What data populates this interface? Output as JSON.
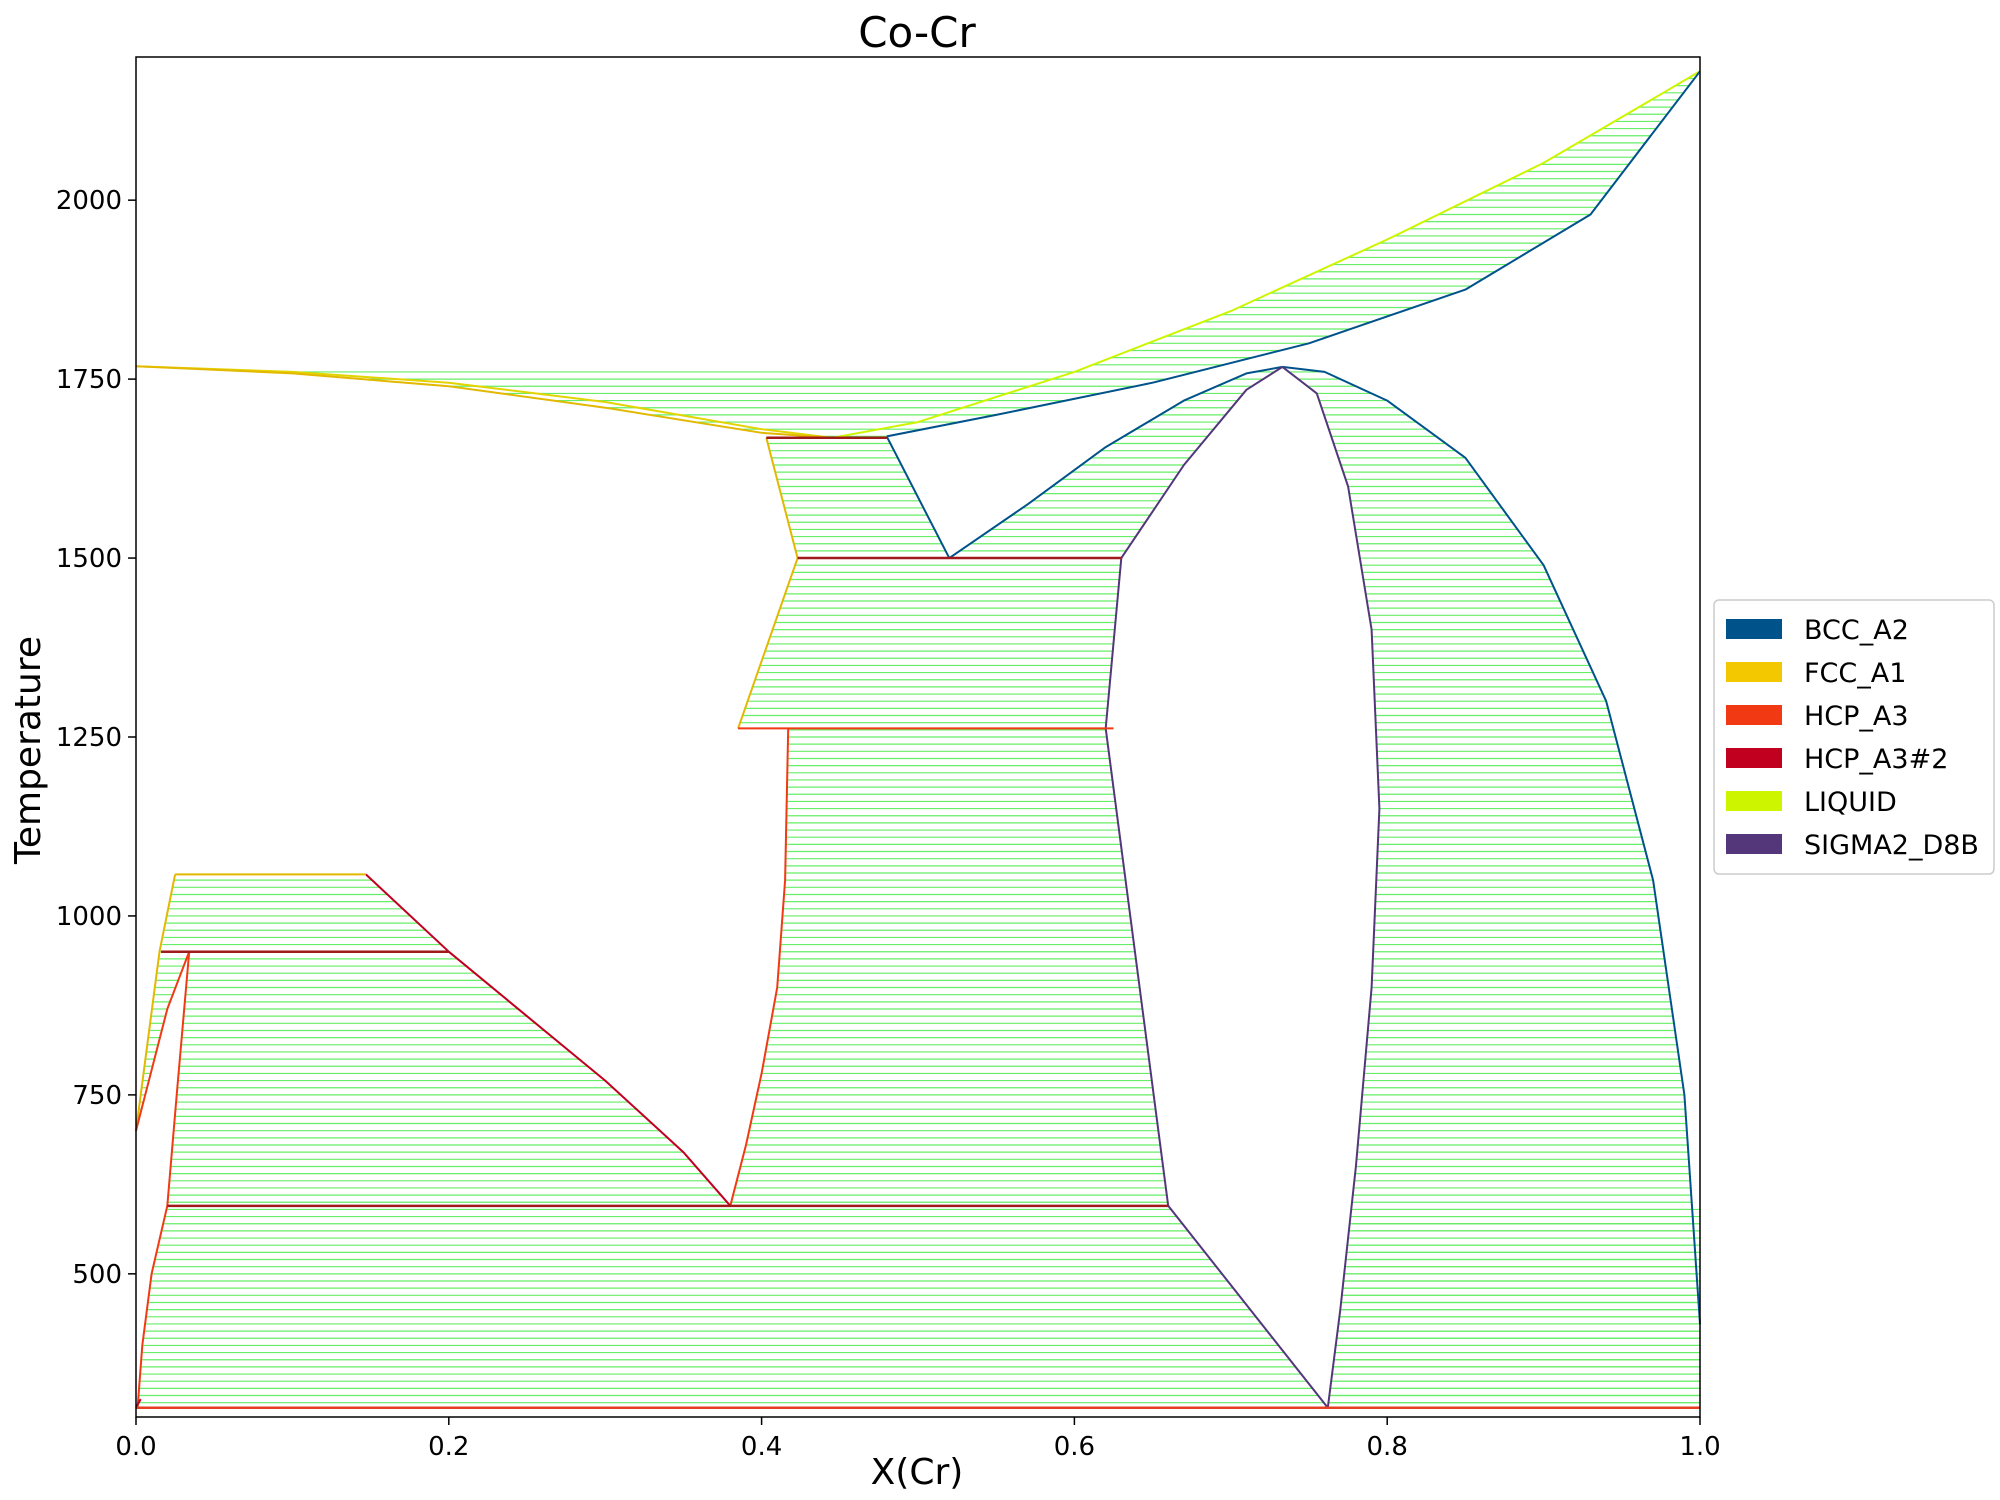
{
  "chart_data": {
    "type": "line",
    "title": "Co-Cr",
    "xlabel": "X(Cr)",
    "ylabel": "Temperature",
    "xlim": [
      0.0,
      1.0
    ],
    "ylim": [
      300,
      2200
    ],
    "x_ticks": [
      "0.0",
      "0.2",
      "0.4",
      "0.6",
      "0.8",
      "1.0"
    ],
    "x_tick_values": [
      0.0,
      0.2,
      0.4,
      0.6,
      0.8,
      1.0
    ],
    "y_ticks": [
      "500",
      "750",
      "1000",
      "1250",
      "1500",
      "1750",
      "2000"
    ],
    "y_tick_values": [
      500,
      750,
      1000,
      1250,
      1500,
      1750,
      2000
    ],
    "grid": false,
    "legend_position": "right-outside",
    "tieline_color": "#66ee66",
    "legend": [
      {
        "name": "BCC_A2",
        "color": "#00538a"
      },
      {
        "name": "FCC_A1",
        "color": "#f4c800"
      },
      {
        "name": "HCP_A3",
        "color": "#f13a13"
      },
      {
        "name": "HCP_A3#2",
        "color": "#c10020"
      },
      {
        "name": "LIQUID",
        "color": "#cef500"
      },
      {
        "name": "SIGMA2_D8B",
        "color": "#53377a"
      }
    ],
    "series": [
      {
        "phase": "LIQUID",
        "color": "#e3d400",
        "x": [
          0.0,
          0.1,
          0.2,
          0.3,
          0.4,
          0.445
        ],
        "y": [
          1768,
          1760,
          1745,
          1718,
          1680,
          1668
        ]
      },
      {
        "phase": "FCC_A1",
        "color": "#e3b800",
        "x": [
          0.0,
          0.1,
          0.2,
          0.3,
          0.4,
          0.445
        ],
        "y": [
          1768,
          1758,
          1740,
          1710,
          1675,
          1668
        ]
      },
      {
        "phase": "LIQUID",
        "color": "#cef500",
        "x": [
          0.445,
          0.5,
          0.6,
          0.7,
          0.8,
          0.9,
          1.0
        ],
        "y": [
          1668,
          1690,
          1760,
          1845,
          1945,
          2052,
          2180
        ]
      },
      {
        "phase": "BCC_A2",
        "color": "#00538a",
        "x": [
          0.48,
          0.55,
          0.65,
          0.75,
          0.85,
          0.93,
          1.0
        ],
        "y": [
          1670,
          1700,
          1745,
          1800,
          1875,
          1980,
          2180
        ]
      },
      {
        "phase": "BCC_A2",
        "color": "#00538a",
        "x": [
          0.48,
          0.52
        ],
        "y": [
          1670,
          1500
        ]
      },
      {
        "phase": "BCC_A2",
        "color": "#00538a",
        "x": [
          0.52,
          0.57,
          0.62,
          0.67,
          0.71,
          0.733
        ],
        "y": [
          1500,
          1575,
          1655,
          1720,
          1758,
          1767
        ]
      },
      {
        "phase": "BCC_A2",
        "color": "#00538a",
        "x": [
          0.733,
          0.76,
          0.8,
          0.85,
          0.9,
          0.94,
          0.97,
          0.99,
          1.0
        ],
        "y": [
          1767,
          1760,
          1720,
          1640,
          1490,
          1300,
          1050,
          750,
          430
        ]
      },
      {
        "phase": "SIGMA2_D8B",
        "color": "#53377a",
        "x": [
          0.63,
          0.67,
          0.71,
          0.733
        ],
        "y": [
          1500,
          1630,
          1735,
          1767
        ]
      },
      {
        "phase": "SIGMA2_D8B",
        "color": "#53377a",
        "x": [
          0.733,
          0.755,
          0.775,
          0.79,
          0.795,
          0.79,
          0.78,
          0.77,
          0.762
        ],
        "y": [
          1767,
          1730,
          1600,
          1400,
          1150,
          900,
          650,
          450,
          313
        ]
      },
      {
        "phase": "SIGMA2_D8B",
        "color": "#53377a",
        "x": [
          0.63,
          0.62,
          0.66,
          0.762
        ],
        "y": [
          1500,
          1262,
          595,
          313
        ]
      },
      {
        "phase": "FCC_A1",
        "color": "#e3b800",
        "x": [
          0.403,
          0.423
        ],
        "y": [
          1668,
          1500
        ]
      },
      {
        "phase": "FCC_A1",
        "color": "#e3b800",
        "x": [
          0.423,
          0.385
        ],
        "y": [
          1500,
          1262
        ]
      },
      {
        "phase": "HCP_A3",
        "color": "#f13a13",
        "x": [
          0.385,
          0.625
        ],
        "y": [
          1262,
          1262
        ]
      },
      {
        "phase": "HCP_A3",
        "color": "#f13a13",
        "x": [
          0.417,
          0.415,
          0.41,
          0.4,
          0.39,
          0.38
        ],
        "y": [
          1262,
          1050,
          900,
          780,
          680,
          595
        ]
      },
      {
        "phase": "HCP_A3#2",
        "color": "#c10020",
        "x": [
          0.147,
          0.2,
          0.25,
          0.3,
          0.35,
          0.38
        ],
        "y": [
          1058,
          950,
          860,
          770,
          670,
          595
        ]
      },
      {
        "phase": "FCC_A1",
        "color": "#e3b800",
        "x": [
          0.0,
          0.015,
          0.025
        ],
        "y": [
          700,
          950,
          1058
        ]
      },
      {
        "phase": "FCC_A1",
        "color": "#e3b800",
        "x": [
          0.025,
          0.147
        ],
        "y": [
          1058,
          1058
        ]
      },
      {
        "phase": "HCP_A3",
        "color": "#f13a13",
        "x": [
          0.0,
          0.02,
          0.034
        ],
        "y": [
          700,
          870,
          950
        ]
      },
      {
        "phase": "HCP_A3",
        "color": "#f13a13",
        "x": [
          0.034,
          0.026,
          0.02
        ],
        "y": [
          950,
          750,
          595
        ]
      },
      {
        "phase": "HCP_A3",
        "color": "#f13a13",
        "x": [
          0.02,
          0.01,
          0.004,
          0.001
        ],
        "y": [
          595,
          500,
          400,
          313
        ]
      },
      {
        "phase": "HCP_A3#2",
        "color": "#c10020",
        "x": [
          0.0,
          0.003
        ],
        "y": [
          313,
          325
        ]
      }
    ],
    "invariants": [
      {
        "color": "#a11a1a",
        "x": [
          0.403,
          0.48
        ],
        "y": 1668
      },
      {
        "color": "#a11a1a",
        "x": [
          0.423,
          0.63
        ],
        "y": 1500
      },
      {
        "color": "#a11a1a",
        "x": [
          0.016,
          0.2
        ],
        "y": 950
      },
      {
        "color": "#a11a1a",
        "x": [
          0.02,
          0.66
        ],
        "y": 595
      },
      {
        "color": "#e64020",
        "x": [
          0.0,
          1.0
        ],
        "y": 313
      }
    ],
    "tie_regions": [
      {
        "y": [
          1668,
          2180
        ],
        "left_x": [
          0.0,
          0.1,
          0.2,
          0.3,
          0.4,
          0.445,
          0.5,
          0.6,
          0.7,
          0.8,
          0.9,
          1.0
        ],
        "left_y": [
          1768,
          1760,
          1745,
          1718,
          1680,
          1668,
          1690,
          1760,
          1845,
          1945,
          2052,
          2180
        ],
        "right_x": [
          0.0,
          0.1,
          0.2,
          0.3,
          0.4,
          0.445,
          0.48,
          0.55,
          0.65,
          0.75,
          0.85,
          0.93,
          1.0
        ],
        "right_y": [
          1768,
          1758,
          1740,
          1710,
          1675,
          1668,
          1670,
          1700,
          1745,
          1800,
          1875,
          1980,
          2180
        ],
        "mode": "band"
      },
      {
        "y": [
          1500,
          1668
        ],
        "left_x": [
          0.403,
          0.423
        ],
        "left_y": [
          1668,
          1500
        ],
        "right_x": [
          0.48,
          0.52
        ],
        "right_y": [
          1670,
          1500
        ],
        "mode": "lr"
      },
      {
        "y": [
          1500,
          1767
        ],
        "left_x": [
          0.52,
          0.57,
          0.62,
          0.67,
          0.71,
          0.733
        ],
        "left_y": [
          1500,
          1575,
          1655,
          1720,
          1758,
          1767
        ],
        "right_x": [
          0.63,
          0.67,
          0.71,
          0.733
        ],
        "right_y": [
          1500,
          1630,
          1735,
          1767
        ],
        "mode": "lr"
      },
      {
        "y": [
          1262,
          1500
        ],
        "left_x": [
          0.423,
          0.385
        ],
        "left_y": [
          1500,
          1262
        ],
        "right_x": [
          0.63,
          0.62
        ],
        "right_y": [
          1500,
          1262
        ],
        "mode": "lr"
      },
      {
        "y": [
          595,
          1262
        ],
        "left_x": [
          0.417,
          0.415,
          0.41,
          0.4,
          0.39,
          0.38
        ],
        "left_y": [
          1262,
          1050,
          900,
          780,
          680,
          595
        ],
        "right_x": [
          0.62,
          0.66
        ],
        "right_y": [
          1262,
          595
        ],
        "mode": "lr"
      },
      {
        "y": [
          313,
          1767
        ],
        "left_x": [
          0.733,
          0.755,
          0.775,
          0.79,
          0.795,
          0.79,
          0.78,
          0.77,
          0.762
        ],
        "left_y": [
          1767,
          1730,
          1600,
          1400,
          1150,
          900,
          650,
          450,
          313
        ],
        "right_x": [
          0.733,
          0.76,
          0.8,
          0.85,
          0.9,
          0.94,
          0.97,
          0.99,
          1.0,
          1.0
        ],
        "right_y": [
          1767,
          1760,
          1720,
          1640,
          1490,
          1300,
          1050,
          750,
          430,
          313
        ],
        "mode": "lr"
      },
      {
        "y": [
          950,
          1058
        ],
        "left_x": [
          0.016,
          0.025
        ],
        "left_y": [
          950,
          1058
        ],
        "right_x": [
          0.2,
          0.147
        ],
        "right_y": [
          950,
          1058
        ],
        "mode": "lr"
      },
      {
        "y": [
          595,
          950
        ],
        "left_x": [
          0.034,
          0.026,
          0.02
        ],
        "left_y": [
          950,
          750,
          595
        ],
        "right_x": [
          0.2,
          0.25,
          0.3,
          0.35,
          0.38
        ],
        "right_y": [
          950,
          860,
          770,
          670,
          595
        ],
        "mode": "lr"
      },
      {
        "y": [
          700,
          950
        ],
        "left_x": [
          0.0,
          0.015
        ],
        "left_y": [
          700,
          950
        ],
        "right_x": [
          0.0,
          0.02,
          0.034
        ],
        "right_y": [
          700,
          870,
          950
        ],
        "mode": "lr"
      },
      {
        "y": [
          313,
          595
        ],
        "left_x": [
          0.02,
          0.01,
          0.004,
          0.001
        ],
        "left_y": [
          595,
          500,
          400,
          313
        ],
        "right_x": [
          0.66,
          0.762
        ],
        "right_y": [
          595,
          313
        ],
        "mode": "lr"
      },
      {
        "y": [
          313,
          595
        ],
        "left_x": [
          0.762,
          0.77,
          0.78,
          0.785
        ],
        "left_y": [
          313,
          450,
          600,
          700
        ],
        "right_x": [
          1.0,
          1.0
        ],
        "right_y": [
          313,
          700
        ],
        "mode": "lr"
      }
    ]
  }
}
